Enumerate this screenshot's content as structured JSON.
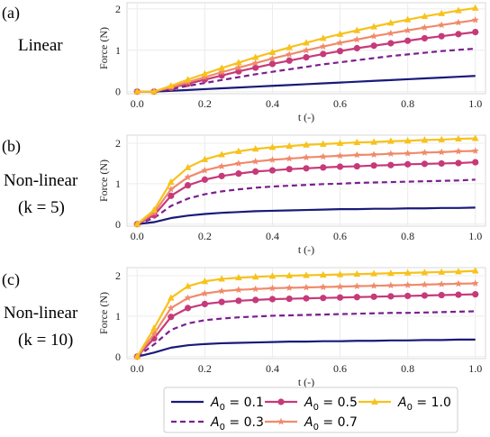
{
  "colors": {
    "A0_0.1": "#1a1a7a",
    "A0_0.3": "#7b1f8f",
    "A0_0.5": "#c63a79",
    "A0_0.7": "#f08a6b",
    "A0_1.0": "#f7c21b"
  },
  "legend": {
    "entries": [
      {
        "name": "A0 = 0.1",
        "base": "A",
        "sub": "0",
        "rest": " = 0.1",
        "color": "#1a1a7a",
        "style": "solid",
        "marker": "none"
      },
      {
        "name": "A0 = 0.3",
        "base": "A",
        "sub": "0",
        "rest": " = 0.3",
        "color": "#7b1f8f",
        "style": "dashed",
        "marker": "none"
      },
      {
        "name": "A0 = 0.5",
        "base": "A",
        "sub": "0",
        "rest": " = 0.5",
        "color": "#c63a79",
        "style": "solid",
        "marker": "circle"
      },
      {
        "name": "A0 = 0.7",
        "base": "A",
        "sub": "0",
        "rest": " = 0.7",
        "color": "#f08a6b",
        "style": "solid",
        "marker": "star"
      },
      {
        "name": "A0 = 1.0",
        "base": "A",
        "sub": "0",
        "rest": " = 1.0",
        "color": "#f7c21b",
        "style": "solid",
        "marker": "triangle"
      }
    ]
  },
  "chart_data": [
    {
      "type": "line",
      "panel": "(a)",
      "title_lines": [
        "Linear"
      ],
      "xlabel": "t (-)",
      "ylabel": "Force (N)",
      "xlim": [
        -0.03,
        1.03
      ],
      "ylim": [
        -0.05,
        2.15
      ],
      "xticks": [
        "0.0",
        "0.2",
        "0.4",
        "0.6",
        "0.8",
        "1.0"
      ],
      "yticks": [
        "0",
        "1",
        "2"
      ],
      "grid": true,
      "x": [
        0.0,
        0.05,
        0.1,
        0.15,
        0.2,
        0.25,
        0.3,
        0.35,
        0.4,
        0.45,
        0.5,
        0.55,
        0.6,
        0.65,
        0.7,
        0.75,
        0.8,
        0.85,
        0.9,
        0.95,
        1.0
      ],
      "series": [
        {
          "name": "A0 = 0.1",
          "values": [
            0.0,
            0.0,
            0.02,
            0.04,
            0.06,
            0.08,
            0.1,
            0.12,
            0.14,
            0.16,
            0.18,
            0.2,
            0.22,
            0.24,
            0.26,
            0.28,
            0.3,
            0.32,
            0.34,
            0.36,
            0.38
          ]
        },
        {
          "name": "A0 = 0.3",
          "values": [
            0.0,
            0.0,
            0.06,
            0.14,
            0.21,
            0.28,
            0.35,
            0.42,
            0.48,
            0.54,
            0.6,
            0.66,
            0.71,
            0.76,
            0.81,
            0.86,
            0.9,
            0.94,
            0.98,
            1.01,
            1.04
          ]
        },
        {
          "name": "A0 = 0.5",
          "values": [
            0.0,
            0.0,
            0.09,
            0.19,
            0.29,
            0.39,
            0.49,
            0.58,
            0.67,
            0.75,
            0.83,
            0.91,
            0.98,
            1.05,
            1.11,
            1.17,
            1.23,
            1.29,
            1.34,
            1.39,
            1.44
          ]
        },
        {
          "name": "A0 = 0.7",
          "values": [
            0.0,
            0.0,
            0.11,
            0.23,
            0.35,
            0.47,
            0.58,
            0.69,
            0.8,
            0.9,
            1.0,
            1.09,
            1.18,
            1.26,
            1.34,
            1.41,
            1.48,
            1.55,
            1.61,
            1.67,
            1.73
          ]
        },
        {
          "name": "A0 = 1.0",
          "values": [
            0.0,
            0.0,
            0.14,
            0.29,
            0.43,
            0.57,
            0.7,
            0.83,
            0.95,
            1.07,
            1.18,
            1.29,
            1.39,
            1.48,
            1.57,
            1.66,
            1.74,
            1.82,
            1.89,
            1.96,
            2.02
          ]
        }
      ]
    },
    {
      "type": "line",
      "panel": "(b)",
      "title_lines": [
        "Non-linear",
        "(k = 5)"
      ],
      "xlabel": "t (-)",
      "ylabel": "Force (N)",
      "xlim": [
        -0.03,
        1.03
      ],
      "ylim": [
        -0.05,
        2.2
      ],
      "xticks": [
        "0.0",
        "0.2",
        "0.4",
        "0.6",
        "0.8",
        "1.0"
      ],
      "yticks": [
        "0",
        "1",
        "2"
      ],
      "grid": true,
      "x": [
        0.0,
        0.05,
        0.1,
        0.15,
        0.2,
        0.25,
        0.3,
        0.35,
        0.4,
        0.45,
        0.5,
        0.55,
        0.6,
        0.65,
        0.7,
        0.75,
        0.8,
        0.85,
        0.9,
        0.95,
        1.0
      ],
      "series": [
        {
          "name": "A0 = 0.1",
          "values": [
            0.0,
            0.05,
            0.15,
            0.21,
            0.25,
            0.28,
            0.3,
            0.32,
            0.33,
            0.34,
            0.35,
            0.36,
            0.37,
            0.37,
            0.38,
            0.38,
            0.39,
            0.39,
            0.4,
            0.4,
            0.41
          ]
        },
        {
          "name": "A0 = 0.3",
          "values": [
            0.0,
            0.15,
            0.45,
            0.63,
            0.74,
            0.81,
            0.86,
            0.9,
            0.93,
            0.95,
            0.97,
            0.99,
            1.0,
            1.02,
            1.03,
            1.04,
            1.05,
            1.06,
            1.07,
            1.08,
            1.1
          ]
        },
        {
          "name": "A0 = 0.5",
          "values": [
            0.0,
            0.22,
            0.7,
            0.96,
            1.1,
            1.19,
            1.25,
            1.3,
            1.33,
            1.36,
            1.38,
            1.4,
            1.42,
            1.43,
            1.45,
            1.46,
            1.48,
            1.49,
            1.5,
            1.51,
            1.53
          ]
        },
        {
          "name": "A0 = 0.7",
          "values": [
            0.0,
            0.28,
            0.86,
            1.16,
            1.33,
            1.43,
            1.5,
            1.55,
            1.59,
            1.62,
            1.65,
            1.67,
            1.69,
            1.71,
            1.72,
            1.74,
            1.75,
            1.77,
            1.78,
            1.8,
            1.81
          ]
        },
        {
          "name": "A0 = 1.0",
          "values": [
            0.0,
            0.35,
            1.04,
            1.4,
            1.6,
            1.72,
            1.8,
            1.86,
            1.9,
            1.93,
            1.96,
            1.98,
            2.0,
            2.02,
            2.03,
            2.05,
            2.06,
            2.08,
            2.09,
            2.11,
            2.12
          ]
        }
      ]
    },
    {
      "type": "line",
      "panel": "(c)",
      "title_lines": [
        "Non-linear",
        "(k = 10)"
      ],
      "xlabel": "t (-)",
      "ylabel": "Force (N)",
      "xlim": [
        -0.03,
        1.03
      ],
      "ylim": [
        -0.05,
        2.2
      ],
      "xticks": [
        "0.0",
        "0.2",
        "0.4",
        "0.6",
        "0.8",
        "1.0"
      ],
      "yticks": [
        "0",
        "1",
        "2"
      ],
      "grid": true,
      "x": [
        0.0,
        0.05,
        0.1,
        0.15,
        0.2,
        0.25,
        0.3,
        0.35,
        0.4,
        0.45,
        0.5,
        0.55,
        0.6,
        0.65,
        0.7,
        0.75,
        0.8,
        0.85,
        0.9,
        0.95,
        1.0
      ],
      "series": [
        {
          "name": "A0 = 0.1",
          "values": [
            0.0,
            0.1,
            0.22,
            0.28,
            0.31,
            0.33,
            0.34,
            0.35,
            0.36,
            0.37,
            0.37,
            0.38,
            0.38,
            0.39,
            0.39,
            0.4,
            0.4,
            0.41,
            0.41,
            0.42,
            0.42
          ]
        },
        {
          "name": "A0 = 0.3",
          "values": [
            0.0,
            0.3,
            0.66,
            0.82,
            0.9,
            0.94,
            0.97,
            0.99,
            1.01,
            1.02,
            1.03,
            1.04,
            1.05,
            1.06,
            1.07,
            1.08,
            1.08,
            1.09,
            1.1,
            1.11,
            1.12
          ]
        },
        {
          "name": "A0 = 0.5",
          "values": [
            0.0,
            0.45,
            0.98,
            1.2,
            1.3,
            1.35,
            1.38,
            1.4,
            1.42,
            1.43,
            1.44,
            1.45,
            1.46,
            1.47,
            1.48,
            1.49,
            1.5,
            1.51,
            1.52,
            1.53,
            1.54
          ]
        },
        {
          "name": "A0 = 0.7",
          "values": [
            0.0,
            0.56,
            1.2,
            1.45,
            1.56,
            1.62,
            1.65,
            1.67,
            1.69,
            1.7,
            1.71,
            1.72,
            1.73,
            1.74,
            1.75,
            1.76,
            1.77,
            1.78,
            1.79,
            1.8,
            1.81
          ]
        },
        {
          "name": "A0 = 1.0",
          "values": [
            0.0,
            0.7,
            1.45,
            1.74,
            1.86,
            1.92,
            1.95,
            1.97,
            1.99,
            2.0,
            2.01,
            2.02,
            2.03,
            2.04,
            2.05,
            2.06,
            2.07,
            2.08,
            2.09,
            2.1,
            2.12
          ]
        }
      ]
    }
  ]
}
